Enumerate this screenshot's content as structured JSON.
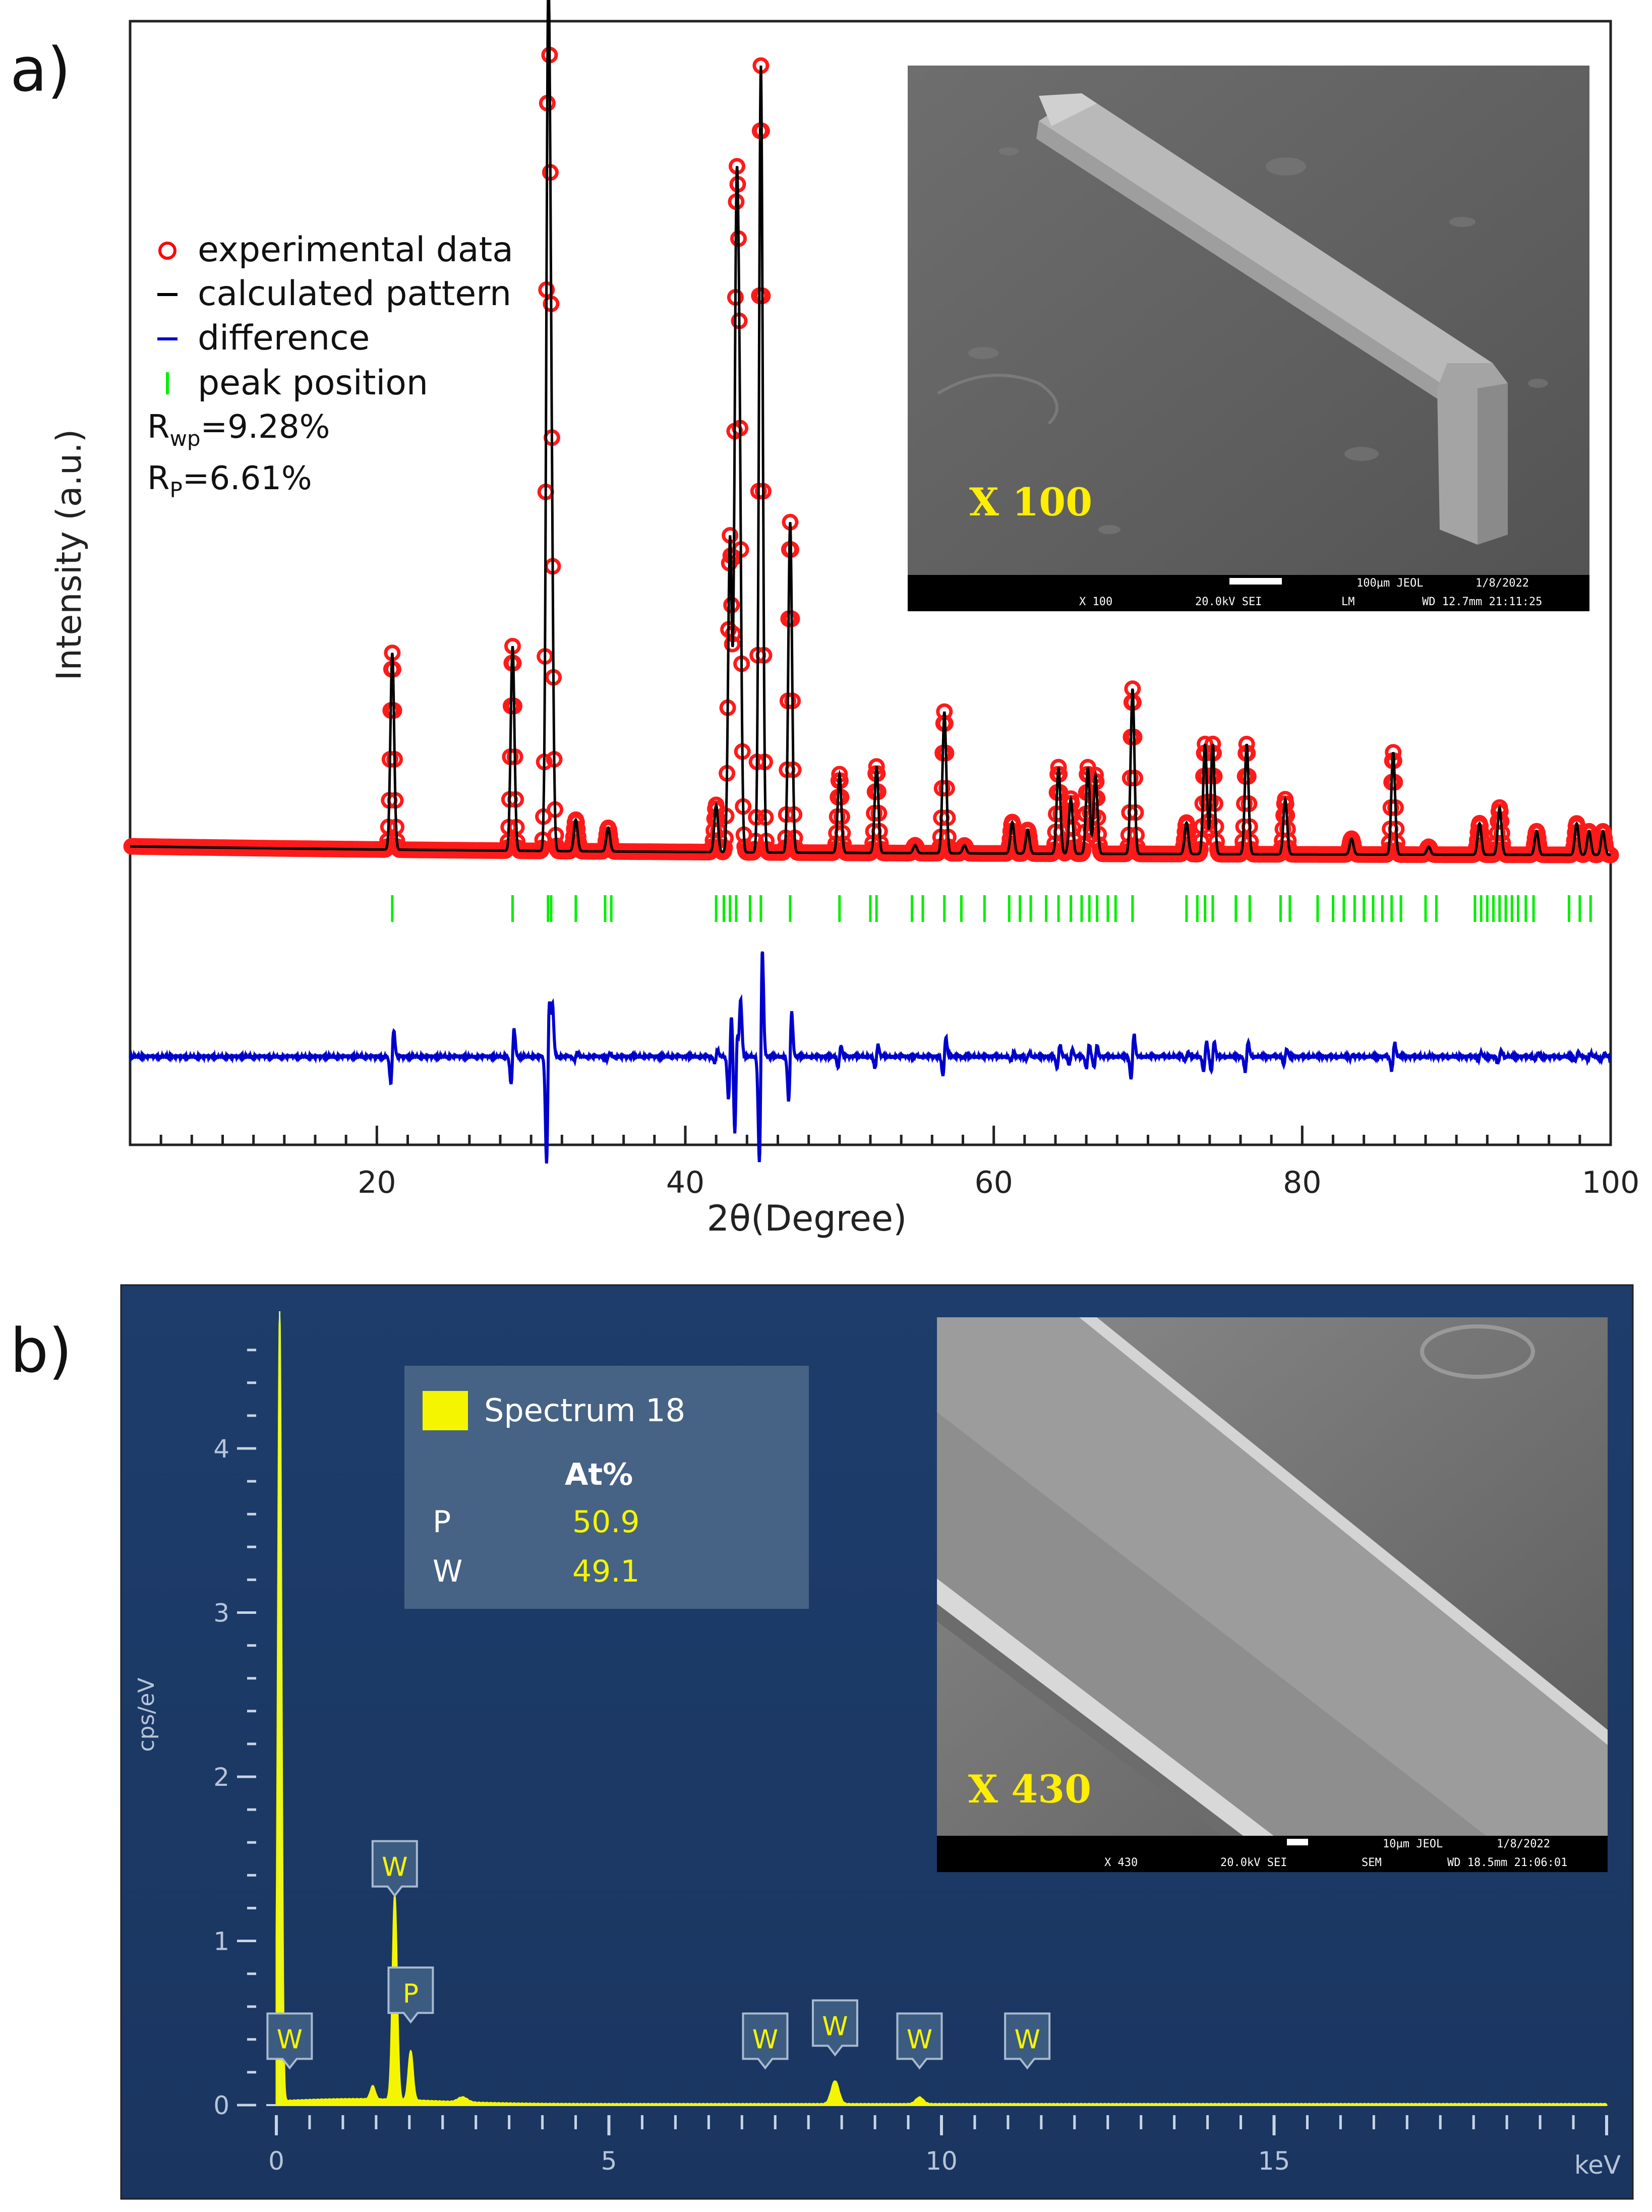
{
  "panels": {
    "a": {
      "label": "a)",
      "ylabel": "Intensity (a.u.)",
      "xlabel": "2θ(Degree)",
      "legend": [
        "experimental data",
        "calculated pattern",
        "difference",
        "peak position"
      ],
      "rwp_label": "R",
      "rwp_sub": "wp",
      "rwp_value": "=9.28%",
      "rp_label": "R",
      "rp_sub": "P",
      "rp_value": "=6.61%",
      "inset": {
        "mag_label": "X 100",
        "bar_line1": [
          "100µm JEOL",
          "1/8/2022"
        ],
        "bar_line2": [
          "X 100",
          "20.0kV SEI",
          "LM",
          "WD 12.7mm 21:11:25"
        ]
      },
      "colors": {
        "experimental": "#ff0000",
        "calculated": "#000000",
        "difference": "#0000cc",
        "peak": "#00ee00"
      }
    },
    "b": {
      "label": "b)",
      "ylabel": "cps/eV",
      "xunit": "keV",
      "legend": {
        "name": "Spectrum 18",
        "header": "At%",
        "rows": [
          {
            "element": "P",
            "value": "50.9"
          },
          {
            "element": "W",
            "value": "49.1"
          }
        ]
      },
      "inset": {
        "mag_label": "X 430",
        "bar_line1": [
          "10µm JEOL",
          "1/8/2022"
        ],
        "bar_line2": [
          "X 430",
          "20.0kV SEI",
          "SEM",
          "WD 18.5mm 21:06:01"
        ]
      },
      "colors": {
        "background": "#1c3a66",
        "spectrum": "#f5f500",
        "axis": "#c8d4e4"
      }
    }
  },
  "chart_data": [
    {
      "type": "line",
      "xlim": [
        4,
        100
      ],
      "xticks": [
        20,
        40,
        60,
        80,
        100
      ],
      "series": [
        {
          "name": "experimental data",
          "style": "markers"
        },
        {
          "name": "calculated pattern",
          "style": "line"
        },
        {
          "name": "difference",
          "style": "line"
        },
        {
          "name": "peak position",
          "style": "ticks"
        }
      ],
      "peaks": [
        {
          "x": 21.0,
          "y": 0.25
        },
        {
          "x": 28.8,
          "y": 0.26
        },
        {
          "x": 31.1,
          "y": 0.98
        },
        {
          "x": 31.3,
          "y": 0.45
        },
        {
          "x": 32.9,
          "y": 0.04
        },
        {
          "x": 35.0,
          "y": 0.03
        },
        {
          "x": 42.0,
          "y": 0.06
        },
        {
          "x": 42.9,
          "y": 0.4
        },
        {
          "x": 43.3,
          "y": 0.7
        },
        {
          "x": 43.5,
          "y": 0.5
        },
        {
          "x": 44.9,
          "y": 1.0
        },
        {
          "x": 46.8,
          "y": 0.42
        },
        {
          "x": 50.0,
          "y": 0.1
        },
        {
          "x": 52.4,
          "y": 0.11
        },
        {
          "x": 54.9,
          "y": 0.01
        },
        {
          "x": 56.8,
          "y": 0.18
        },
        {
          "x": 58.1,
          "y": 0.01
        },
        {
          "x": 61.2,
          "y": 0.04
        },
        {
          "x": 62.2,
          "y": 0.03
        },
        {
          "x": 64.2,
          "y": 0.11
        },
        {
          "x": 65.0,
          "y": 0.07
        },
        {
          "x": 66.1,
          "y": 0.11
        },
        {
          "x": 66.6,
          "y": 0.1
        },
        {
          "x": 69.0,
          "y": 0.21
        },
        {
          "x": 72.5,
          "y": 0.04
        },
        {
          "x": 73.7,
          "y": 0.14
        },
        {
          "x": 74.2,
          "y": 0.14
        },
        {
          "x": 76.4,
          "y": 0.14
        },
        {
          "x": 78.9,
          "y": 0.07
        },
        {
          "x": 83.2,
          "y": 0.02
        },
        {
          "x": 85.9,
          "y": 0.13
        },
        {
          "x": 88.2,
          "y": 0.01
        },
        {
          "x": 91.5,
          "y": 0.04
        },
        {
          "x": 92.8,
          "y": 0.06
        },
        {
          "x": 95.2,
          "y": 0.03
        },
        {
          "x": 97.8,
          "y": 0.04
        },
        {
          "x": 98.6,
          "y": 0.03
        },
        {
          "x": 99.5,
          "y": 0.03
        }
      ],
      "peak_positions": [
        21.0,
        28.8,
        31.1,
        31.3,
        32.9,
        34.8,
        35.2,
        42.0,
        42.5,
        42.9,
        43.3,
        44.2,
        44.9,
        46.8,
        50.0,
        52.0,
        52.4,
        54.7,
        55.4,
        56.8,
        57.9,
        59.4,
        61.0,
        61.7,
        62.4,
        63.4,
        64.2,
        65.0,
        65.7,
        66.2,
        66.7,
        67.4,
        67.9,
        69.0,
        72.5,
        73.2,
        73.7,
        74.2,
        75.7,
        76.6,
        78.6,
        79.2,
        81.0,
        82.0,
        82.7,
        83.4,
        84.0,
        84.6,
        85.2,
        85.8,
        86.4,
        88.0,
        88.7,
        91.2,
        91.6,
        92.0,
        92.4,
        92.8,
        93.2,
        93.6,
        94.0,
        94.5,
        95.0,
        97.3,
        98.0,
        98.7
      ]
    },
    {
      "type": "line",
      "xlim": [
        0,
        20
      ],
      "ylim": [
        0,
        4.8
      ],
      "xticks": [
        0,
        5,
        10,
        15
      ],
      "yticks": [
        0,
        1,
        2,
        3,
        4
      ],
      "series": [
        {
          "name": "Spectrum 18"
        }
      ],
      "peaks": [
        {
          "x": 0.05,
          "y": 4.8,
          "width": 0.04
        },
        {
          "x": 1.45,
          "y": 0.08,
          "width": 0.05
        },
        {
          "x": 1.78,
          "y": 1.25,
          "width": 0.05
        },
        {
          "x": 2.02,
          "y": 0.3,
          "width": 0.05
        },
        {
          "x": 2.8,
          "y": 0.03,
          "width": 0.1
        },
        {
          "x": 8.4,
          "y": 0.14,
          "width": 0.08
        },
        {
          "x": 9.67,
          "y": 0.04,
          "width": 0.08
        }
      ],
      "peak_labels": [
        {
          "text": "W",
          "x": 0.2,
          "y": 0.22
        },
        {
          "text": "W",
          "x": 1.78,
          "y": 1.27
        },
        {
          "text": "P",
          "x": 2.02,
          "y": 0.5
        },
        {
          "text": "W",
          "x": 7.35,
          "y": 0.22
        },
        {
          "text": "W",
          "x": 8.4,
          "y": 0.3
        },
        {
          "text": "W",
          "x": 9.67,
          "y": 0.22
        },
        {
          "text": "W",
          "x": 11.29,
          "y": 0.22
        }
      ]
    }
  ]
}
